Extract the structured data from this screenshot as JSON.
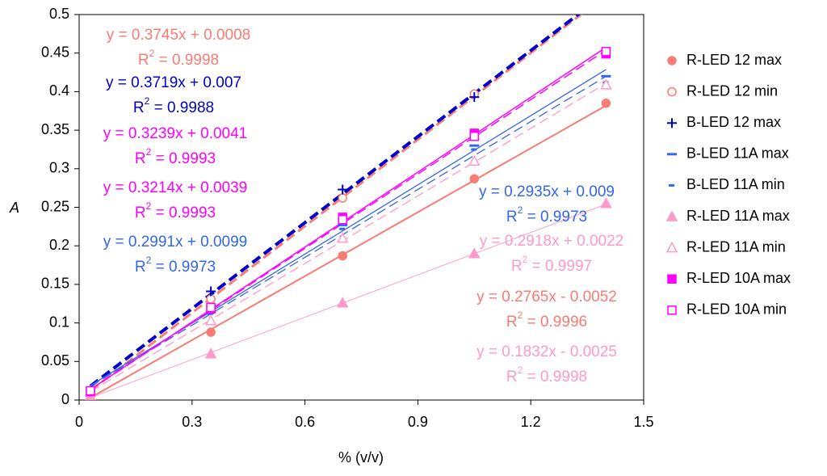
{
  "chart_data": {
    "type": "scatter",
    "x_label": "% (v/v)",
    "y_label": "A",
    "x": [
      0.03,
      0.35,
      0.7,
      1.05,
      1.4
    ],
    "xlim": [
      0,
      1.5
    ],
    "xticks": [
      0,
      0.3,
      0.6,
      0.9,
      1.2,
      1.5
    ],
    "ylim": [
      0,
      0.5
    ],
    "yticks": [
      0,
      0.05,
      0.1,
      0.15,
      0.2,
      0.25,
      0.3,
      0.35,
      0.4,
      0.45,
      0.5
    ],
    "legend": "right",
    "series": [
      {
        "name": "R-LED 12 max",
        "color": "#f87c74",
        "marker": "circle",
        "dashed": false,
        "values": [
          0.007,
          0.088,
          0.187,
          0.287,
          0.385
        ],
        "trendline": {
          "slope": 0.2765,
          "intercept": -0.0052,
          "equation": "y = 0.2765x - 0.0052",
          "r_squared": {
            "base": "R",
            "power": "2",
            "rest": " = 0.9996"
          }
        }
      },
      {
        "name": "R-LED 12 min",
        "color": "#f87c74",
        "marker": "open-circle",
        "dashed": true,
        "values": [
          0.01,
          0.131,
          0.262,
          0.397,
          null
        ],
        "trendline": {
          "slope": 0.3745,
          "intercept": 0.0008,
          "equation": "y = 0.3745x + 0.0008",
          "r_squared": {
            "base": "R",
            "power": "2",
            "rest": " = 0.9998"
          }
        }
      },
      {
        "name": "B-LED 12 max",
        "color": "#0000cc",
        "marker": "plus",
        "dashed": true,
        "values": [
          0.012,
          0.141,
          0.273,
          0.393,
          null
        ],
        "trendline": {
          "slope": 0.3719,
          "intercept": 0.007,
          "equation": "y = 0.3719x + 0.007",
          "r_squared": {
            "base": "R",
            "power": "2",
            "rest": " = 0.9988"
          }
        }
      },
      {
        "name": "B-LED 11A max",
        "color": "#3366ee",
        "marker": "dash",
        "dashed": false,
        "values": [
          0.012,
          0.115,
          0.227,
          0.33,
          0.42
        ],
        "trendline": {
          "slope": 0.2991,
          "intercept": 0.0099,
          "equation": "y = 0.2991x + 0.0099",
          "r_squared": {
            "base": "R",
            "power": "2",
            "rest": " = 0.9973"
          }
        }
      },
      {
        "name": "B-LED 11A min",
        "color": "#3366ee",
        "marker": "small-dash",
        "dashed": true,
        "values": [
          0.01,
          0.112,
          0.222,
          0.325,
          0.412
        ],
        "trendline": {
          "slope": 0.2935,
          "intercept": 0.009,
          "equation": "y = 0.2935x + 0.009",
          "r_squared": {
            "base": "R",
            "power": "2",
            "rest": " = 0.9973"
          }
        }
      },
      {
        "name": "R-LED 11A max",
        "color": "#ff99cc",
        "marker": "triangle",
        "dashed": false,
        "values": [
          0.005,
          0.06,
          0.126,
          0.19,
          0.255
        ],
        "trendline": {
          "slope": 0.1832,
          "intercept": -0.0025,
          "equation": "y = 0.1832x - 0.0025",
          "r_squared": {
            "base": "R",
            "power": "2",
            "rest": " = 0.9998"
          }
        }
      },
      {
        "name": "R-LED 11A min",
        "color": "#ff99cc",
        "marker": "open-triangle",
        "dashed": true,
        "values": [
          0.01,
          0.103,
          0.21,
          0.31,
          0.409
        ],
        "trendline": {
          "slope": 0.2918,
          "intercept": 0.0022,
          "equation": "y = 0.2918x + 0.0022",
          "r_squared": {
            "base": "R",
            "power": "2",
            "rest": " = 0.9997"
          }
        }
      },
      {
        "name": "R-LED 10A max",
        "color": "#ff00ff",
        "marker": "square",
        "dashed": false,
        "values": [
          0.011,
          0.118,
          0.237,
          0.346,
          0.449
        ],
        "trendline": {
          "slope": 0.3239,
          "intercept": 0.0041,
          "equation": "y = 0.3239x + 0.0041",
          "r_squared": {
            "base": "R",
            "power": "2",
            "rest": " = 0.9993"
          }
        }
      },
      {
        "name": "R-LED 10A min",
        "color": "#ff00ff",
        "marker": "open-square",
        "dashed": true,
        "values": [
          0.012,
          0.12,
          0.234,
          0.342,
          0.452
        ],
        "trendline": {
          "slope": 0.3214,
          "intercept": 0.0039,
          "equation": "y = 0.3214x + 0.0039",
          "r_squared": {
            "base": "R",
            "power": "2",
            "rest": " = 0.9993"
          }
        }
      }
    ]
  }
}
